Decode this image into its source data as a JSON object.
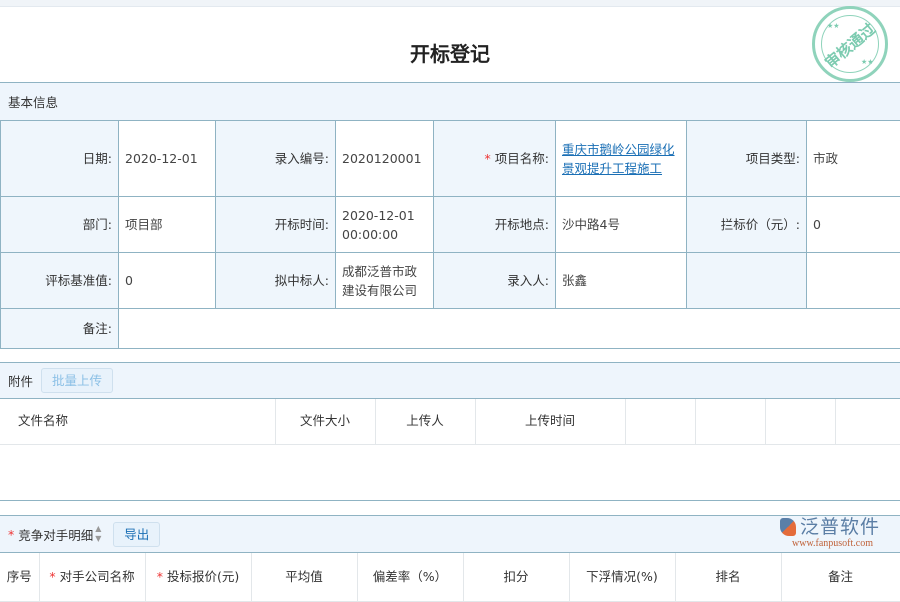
{
  "title": "开标登记",
  "basic": {
    "header": "基本信息",
    "date_label": "日期:",
    "date": "2020-12-01",
    "code_label": "录入编号:",
    "code": "2020120001",
    "project_label": "项目名称:",
    "project": "重庆市鹅岭公园绿化景观提升工程施工",
    "type_label": "项目类型:",
    "type": "市政",
    "dept_label": "部门:",
    "dept": "项目部",
    "open_time_label": "开标时间:",
    "open_time": "2020-12-01 00:00:00",
    "place_label": "开标地点:",
    "place": "沙中路4号",
    "limit_label": "拦标价（元）:",
    "limit": "0",
    "base_label": "评标基准值:",
    "base": "0",
    "winner_label": "拟中标人:",
    "winner": "成都泛普市政建设有限公司",
    "entry_label": "录入人:",
    "entry": "张鑫",
    "remark_label": "备注:",
    "remark": ""
  },
  "attach": {
    "header": "附件",
    "upload_btn": "批量上传",
    "columns": [
      "文件名称",
      "文件大小",
      "上传人",
      "上传时间",
      "",
      "",
      "",
      ""
    ]
  },
  "rivals": {
    "header": "竞争对手明细",
    "export_btn": "导出",
    "columns": [
      "序号",
      "对手公司名称",
      "投标报价(元)",
      "平均值",
      "偏差率（%）",
      "扣分",
      "下浮情况(%)",
      "排名",
      "备注"
    ]
  },
  "stamp": {
    "text": "审核通过"
  },
  "logo": {
    "name": "泛普软件",
    "url": "www.fanpusoft.com"
  },
  "colors": {
    "border": "#8fb3c3",
    "header_bg": "#eef5fc",
    "link": "#1a6fb5",
    "stamp": "#7ccbb0"
  }
}
